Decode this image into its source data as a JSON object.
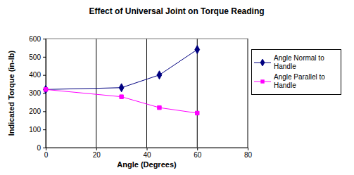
{
  "chart_data": {
    "type": "line",
    "title": "Effect of Universal Joint on Torque Reading",
    "x_label": "Angle (Degrees)",
    "y_label": "Indicated Torque (in-lb)",
    "x": [
      0,
      30,
      45,
      60
    ],
    "series": [
      {
        "name": "Angle Normal to Handle",
        "color": "#000080",
        "marker": "diamond",
        "values": [
          320,
          330,
          400,
          540
        ]
      },
      {
        "name": "Angle Parallel to Handle",
        "color": "#ff00ff",
        "marker": "square",
        "values": [
          320,
          280,
          220,
          190
        ]
      }
    ],
    "xlim": [
      0,
      80
    ],
    "xticks": [
      0,
      20,
      40,
      60,
      80
    ],
    "ylim": [
      0,
      600
    ],
    "yticks": [
      0,
      100,
      200,
      300,
      400,
      500,
      600
    ],
    "grid": true,
    "legend": "right"
  }
}
